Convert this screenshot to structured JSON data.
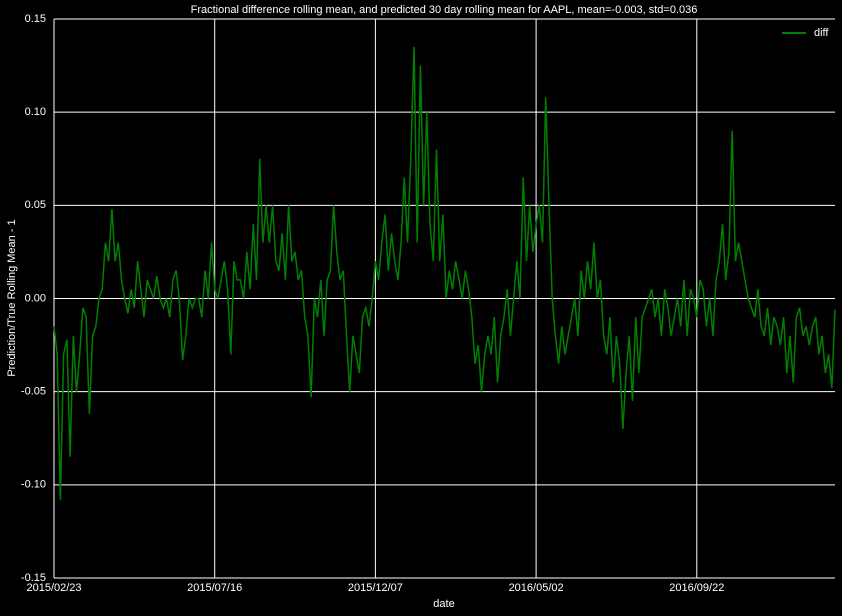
{
  "chart_data": {
    "type": "line",
    "title": "Fractional difference rolling mean, and predicted 30 day rolling mean for AAPL, mean=-0.003, std=0.036",
    "xlabel": "date",
    "ylabel": "Prediction/True Rolling Mean - 1",
    "x": [
      0,
      2,
      4,
      6,
      8,
      10,
      12,
      14,
      16,
      18,
      20,
      22,
      24,
      26,
      28,
      30,
      32,
      34,
      36,
      38,
      40,
      42,
      44,
      46,
      48,
      50,
      52,
      54,
      56,
      58,
      60,
      62,
      64,
      66,
      68,
      70,
      72,
      74,
      76,
      78,
      80,
      82,
      84,
      86,
      88,
      90,
      92,
      94,
      96,
      98,
      100,
      102,
      104,
      106,
      108,
      110,
      112,
      114,
      116,
      118,
      120,
      122,
      124,
      126,
      128,
      130,
      132,
      134,
      136,
      138,
      140,
      142,
      144,
      146,
      148,
      150,
      152,
      154,
      156,
      158,
      160,
      162,
      164,
      166,
      168,
      170,
      172,
      174,
      176,
      178,
      180,
      182,
      184,
      186,
      188,
      190,
      192,
      194,
      196,
      198,
      200,
      202,
      204,
      206,
      208,
      210,
      212,
      214,
      216,
      218,
      220,
      222,
      224,
      226,
      228,
      230,
      232,
      234,
      236,
      238,
      240,
      242,
      244,
      246,
      248,
      250,
      252,
      254,
      256,
      258,
      260,
      262,
      264,
      266,
      268,
      270,
      272,
      274,
      276,
      278,
      280,
      282,
      284,
      286,
      288,
      290,
      292,
      294,
      296,
      298,
      300,
      302,
      304,
      306,
      308,
      310,
      312,
      314,
      316,
      318,
      320,
      322,
      324,
      326,
      328,
      330,
      332,
      334,
      336,
      338,
      340,
      342,
      344,
      346,
      348,
      350,
      352,
      354,
      356,
      358,
      360,
      362,
      364,
      366,
      368,
      370,
      372,
      374,
      376,
      378,
      380,
      382,
      384,
      386,
      388,
      390,
      392,
      394,
      396,
      398,
      400,
      402,
      404,
      406,
      408,
      410,
      412,
      414,
      416,
      418,
      420,
      422,
      424,
      426,
      428,
      430,
      432,
      434,
      436,
      438,
      440,
      442,
      444,
      446,
      448,
      450,
      452,
      454,
      456,
      458,
      460,
      462,
      464,
      466,
      468,
      470,
      472,
      474,
      476,
      478,
      480,
      482,
      484,
      486
    ],
    "series": [
      {
        "name": "diff",
        "color": "#008000",
        "values": [
          -0.015,
          -0.03,
          -0.108,
          -0.03,
          -0.022,
          -0.085,
          -0.02,
          -0.05,
          -0.03,
          -0.005,
          -0.01,
          -0.062,
          -0.02,
          -0.015,
          0.0,
          0.005,
          0.03,
          0.02,
          0.048,
          0.02,
          0.03,
          0.01,
          0.0,
          -0.008,
          0.005,
          -0.005,
          0.02,
          0.005,
          -0.01,
          0.01,
          0.005,
          0.0,
          0.012,
          0.0,
          -0.005,
          0.0,
          -0.01,
          0.01,
          0.015,
          0.0,
          -0.033,
          -0.02,
          0.0,
          -0.005,
          0.0,
          0.0,
          -0.01,
          0.015,
          0.0,
          0.03,
          0.005,
          0.0,
          0.01,
          0.02,
          0.005,
          -0.03,
          0.02,
          0.01,
          0.01,
          0.0,
          0.025,
          0.005,
          0.04,
          0.01,
          0.075,
          0.03,
          0.05,
          0.03,
          0.05,
          0.02,
          0.015,
          0.035,
          0.01,
          0.05,
          0.02,
          0.025,
          0.01,
          0.015,
          -0.01,
          -0.02,
          -0.053,
          0.0,
          -0.01,
          0.01,
          -0.02,
          0.01,
          0.015,
          0.05,
          0.025,
          0.01,
          0.015,
          -0.02,
          -0.05,
          -0.02,
          -0.03,
          -0.04,
          -0.01,
          -0.005,
          -0.015,
          0.0,
          0.02,
          0.01,
          0.03,
          0.045,
          0.015,
          0.035,
          0.02,
          0.01,
          0.03,
          0.065,
          0.03,
          0.075,
          0.135,
          0.03,
          0.125,
          0.05,
          0.1,
          0.04,
          0.02,
          0.08,
          0.02,
          0.045,
          0.0,
          0.015,
          0.005,
          0.02,
          0.01,
          0.0,
          0.015,
          0.005,
          -0.01,
          -0.035,
          -0.025,
          -0.05,
          -0.03,
          -0.02,
          -0.03,
          -0.01,
          -0.045,
          -0.02,
          -0.01,
          0.005,
          -0.02,
          0.0,
          0.02,
          0.0,
          0.065,
          0.02,
          0.05,
          0.025,
          0.04,
          0.05,
          0.03,
          0.108,
          0.05,
          0.0,
          -0.02,
          -0.035,
          -0.015,
          -0.03,
          -0.02,
          -0.01,
          0.0,
          -0.02,
          0.015,
          0.0,
          0.02,
          0.005,
          0.03,
          0.0,
          0.01,
          -0.02,
          -0.03,
          -0.01,
          -0.045,
          -0.02,
          -0.035,
          -0.07,
          -0.04,
          -0.02,
          -0.055,
          -0.01,
          -0.04,
          -0.01,
          -0.005,
          0.0,
          0.005,
          -0.01,
          0.0,
          -0.02,
          0.005,
          -0.005,
          -0.02,
          -0.01,
          0.0,
          -0.015,
          0.01,
          -0.02,
          0.005,
          0.0,
          -0.01,
          0.01,
          0.005,
          -0.015,
          0.0,
          -0.02,
          0.01,
          0.02,
          0.04,
          0.01,
          0.025,
          0.09,
          0.02,
          0.03,
          0.02,
          0.01,
          0.0,
          -0.005,
          -0.01,
          0.005,
          -0.015,
          -0.02,
          -0.005,
          -0.025,
          -0.01,
          -0.015,
          -0.025,
          -0.01,
          -0.04,
          -0.02,
          -0.045,
          -0.01,
          -0.005,
          -0.02,
          -0.015,
          -0.025,
          -0.015,
          -0.01,
          -0.03,
          -0.02,
          -0.04,
          -0.03,
          -0.048,
          -0.006
        ]
      }
    ],
    "xlim": [
      0,
      486
    ],
    "xticks": [
      {
        "value": 0,
        "label": "2015/02/23"
      },
      {
        "value": 100,
        "label": "2015/07/16"
      },
      {
        "value": 200,
        "label": "2015/12/07"
      },
      {
        "value": 300,
        "label": "2016/05/02"
      },
      {
        "value": 400,
        "label": "2016/09/22"
      }
    ],
    "ylim": [
      -0.15,
      0.15
    ],
    "yticks": [
      {
        "value": -0.15,
        "label": "-0.15"
      },
      {
        "value": -0.1,
        "label": "-0.10"
      },
      {
        "value": -0.05,
        "label": "-0.05"
      },
      {
        "value": 0,
        "label": "0.00"
      },
      {
        "value": 0.05,
        "label": "0.05"
      },
      {
        "value": 0.1,
        "label": "0.10"
      },
      {
        "value": 0.15,
        "label": "0.15"
      }
    ],
    "grid": true,
    "legend": "upper right"
  }
}
